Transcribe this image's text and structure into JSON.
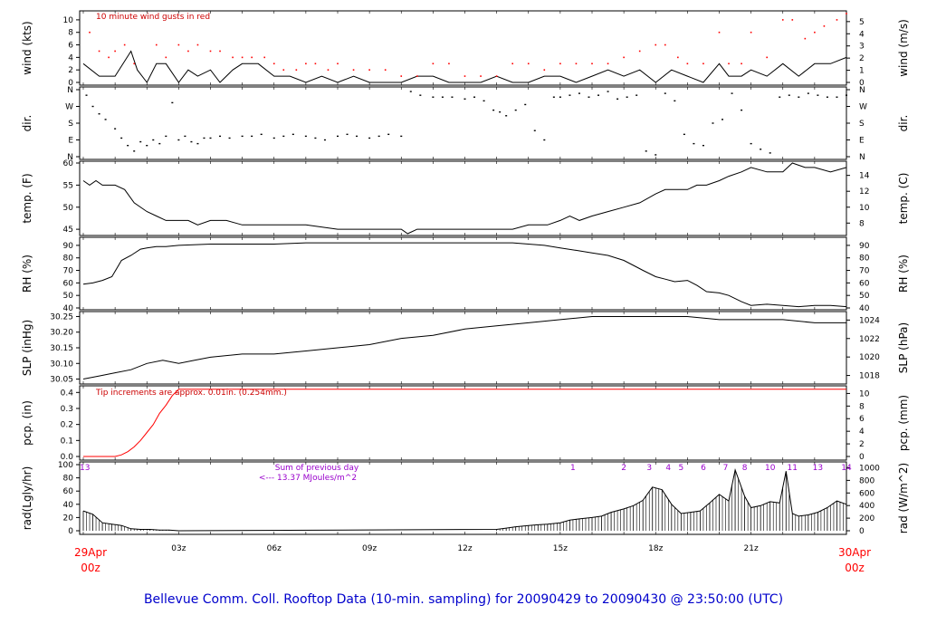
{
  "title": "Bellevue Comm. Coll. Rooftop Data (10-min. sampling) for 20090429  to  20090430 @ 23:50:00  (UTC)",
  "x_ticks": [
    "03z",
    "06z",
    "09z",
    "12z",
    "15z",
    "18z",
    "21z"
  ],
  "start_label": {
    "date": "29Apr",
    "time": "00z"
  },
  "end_label": {
    "date": "30Apr",
    "time": "00z"
  },
  "chart_data": [
    {
      "type": "line",
      "id": "wind",
      "ylabel_left": "wind (kts)",
      "ylabel_right": "wind (m/s)",
      "ylim": [
        0,
        11
      ],
      "left_ticks": [
        0,
        2,
        4,
        6,
        8,
        10
      ],
      "right_ticks": [
        0,
        1,
        2,
        3,
        4,
        5
      ],
      "annotation": "10  minute wind gusts in red",
      "x_hours": [
        0,
        0.5,
        1,
        1.5,
        1.7,
        2,
        2.3,
        2.6,
        3,
        3.3,
        3.6,
        4,
        4.3,
        4.7,
        5,
        5.5,
        6,
        6.5,
        7,
        7.5,
        8,
        8.5,
        9,
        9.5,
        10,
        10.5,
        11,
        11.5,
        12,
        12.5,
        13,
        13.5,
        14,
        14.5,
        15,
        15.5,
        16,
        16.5,
        17,
        17.5,
        18,
        18.5,
        19,
        19.5,
        20,
        20.3,
        20.7,
        21,
        21.5,
        22,
        22.5,
        23,
        23.5,
        24
      ],
      "speed": [
        3,
        1,
        1,
        5,
        2,
        0,
        3,
        3,
        0,
        2,
        1,
        2,
        0,
        2,
        3,
        3,
        1,
        1,
        0,
        1,
        0,
        1,
        0,
        0,
        0,
        1,
        1,
        0,
        0,
        0,
        1,
        0,
        0,
        1,
        1,
        0,
        1,
        2,
        1,
        2,
        0,
        2,
        1,
        0,
        3,
        1,
        1,
        2,
        1,
        3,
        1,
        3,
        3,
        4
      ],
      "gust_hours": [
        0.2,
        0.5,
        0.8,
        1,
        1.3,
        1.6,
        2.3,
        2.6,
        3,
        3.3,
        3.6,
        4,
        4.3,
        4.7,
        5,
        5.3,
        5.7,
        6,
        6.3,
        6.7,
        7,
        7.3,
        7.7,
        8,
        8.5,
        9,
        9.5,
        10,
        10.5,
        11,
        11.5,
        12,
        12.5,
        13,
        13.5,
        14,
        14.5,
        15,
        15.5,
        16,
        16.5,
        17,
        17.5,
        18,
        18.3,
        18.7,
        19,
        19.5,
        20,
        20.3,
        20.7,
        21,
        21.5,
        22,
        22.3,
        22.7,
        23,
        23.3,
        23.7,
        24
      ],
      "gust": [
        8,
        5,
        4,
        5,
        6,
        3,
        6,
        4,
        6,
        5,
        6,
        5,
        5,
        4,
        4,
        4,
        4,
        3,
        2,
        2,
        3,
        3,
        2,
        3,
        2,
        2,
        2,
        1,
        1,
        3,
        3,
        1,
        1,
        1,
        3,
        3,
        2,
        3,
        3,
        3,
        3,
        4,
        5,
        6,
        6,
        4,
        3,
        3,
        8,
        3,
        3,
        8,
        4,
        10,
        10,
        7,
        8,
        9,
        10,
        11
      ]
    },
    {
      "type": "scatter",
      "id": "dir",
      "ylabel_left": "dir.",
      "ylabel_right": "dir.",
      "categories": [
        "N",
        "E",
        "S",
        "W",
        "N"
      ],
      "x_hours": [
        0.1,
        0.3,
        0.5,
        0.7,
        1,
        1.2,
        1.4,
        1.6,
        1.8,
        2,
        2.2,
        2.4,
        2.6,
        2.8,
        3,
        3.2,
        3.4,
        3.6,
        3.8,
        4,
        4.3,
        4.6,
        5,
        5.3,
        5.6,
        6,
        6.3,
        6.6,
        7,
        7.3,
        7.6,
        8,
        8.3,
        8.6,
        9,
        9.3,
        9.6,
        10,
        10.3,
        10.6,
        11,
        11.3,
        11.6,
        12,
        12.3,
        12.6,
        12.9,
        13.1,
        13.3,
        13.6,
        13.9,
        14.2,
        14.5,
        14.8,
        15,
        15.3,
        15.6,
        15.9,
        16.2,
        16.5,
        16.8,
        17.1,
        17.4,
        17.7,
        18,
        18.3,
        18.6,
        18.9,
        19.2,
        19.5,
        19.8,
        20.1,
        20.4,
        20.7,
        21,
        21.3,
        21.6,
        21.9,
        22.2,
        22.5,
        22.8,
        23.1,
        23.4,
        23.7,
        24
      ],
      "deg": [
        330,
        270,
        230,
        200,
        150,
        100,
        60,
        30,
        80,
        60,
        90,
        70,
        110,
        290,
        90,
        110,
        80,
        70,
        100,
        100,
        110,
        100,
        110,
        110,
        120,
        100,
        110,
        120,
        110,
        100,
        90,
        110,
        120,
        110,
        100,
        110,
        120,
        110,
        350,
        330,
        320,
        320,
        320,
        310,
        320,
        300,
        250,
        240,
        220,
        250,
        280,
        140,
        90,
        320,
        320,
        330,
        340,
        320,
        330,
        350,
        310,
        320,
        330,
        30,
        10,
        340,
        300,
        120,
        70,
        60,
        180,
        200,
        340,
        250,
        70,
        40,
        20,
        320,
        330,
        320,
        340,
        330,
        320,
        320,
        330
      ]
    },
    {
      "type": "line",
      "id": "temp",
      "ylabel_left": "temp. (F)",
      "ylabel_right": "temp. (C)",
      "ylim": [
        44,
        60
      ],
      "left_ticks": [
        45,
        50,
        55,
        60
      ],
      "right_ticks": [
        8,
        10,
        12,
        14
      ],
      "x_hours": [
        0,
        0.2,
        0.4,
        0.6,
        1,
        1.3,
        1.6,
        2,
        2.3,
        2.6,
        3,
        3.3,
        3.6,
        4,
        4.5,
        5,
        6,
        7,
        8,
        9,
        10,
        10.2,
        10.5,
        11,
        12,
        13,
        13.5,
        14,
        14.3,
        14.6,
        15,
        15.3,
        15.6,
        16,
        16.5,
        17,
        17.5,
        18,
        18.3,
        18.7,
        19,
        19.3,
        19.6,
        20,
        20.3,
        20.7,
        21,
        21.5,
        22,
        22.3,
        22.7,
        23,
        23.5,
        24
      ],
      "values": [
        56,
        55,
        56,
        55,
        55,
        54,
        51,
        49,
        48,
        47,
        47,
        47,
        46,
        47,
        47,
        46,
        46,
        46,
        45,
        45,
        45,
        44,
        45,
        45,
        45,
        45,
        45,
        46,
        46,
        46,
        47,
        48,
        47,
        48,
        49,
        50,
        51,
        53,
        54,
        54,
        54,
        55,
        55,
        56,
        57,
        58,
        59,
        58,
        58,
        60,
        59,
        59,
        58,
        59
      ]
    },
    {
      "type": "line",
      "id": "rh",
      "ylabel_left": "RH (%)",
      "ylabel_right": "RH (%)",
      "ylim": [
        40,
        95
      ],
      "left_ticks": [
        40,
        50,
        60,
        70,
        80,
        90
      ],
      "right_ticks": [
        40,
        50,
        60,
        70,
        80,
        90
      ],
      "x_hours": [
        0,
        0.3,
        0.6,
        0.9,
        1.2,
        1.5,
        1.8,
        2,
        2.3,
        2.6,
        3,
        4,
        5,
        6,
        7,
        8,
        9,
        10,
        11,
        12,
        13,
        13.5,
        14,
        14.5,
        15,
        15.5,
        16,
        16.5,
        17,
        17.3,
        17.6,
        18,
        18.3,
        18.6,
        19,
        19.3,
        19.6,
        20,
        20.3,
        20.7,
        21,
        21.5,
        22,
        22.5,
        23,
        23.5,
        24
      ],
      "values": [
        59,
        60,
        62,
        65,
        78,
        82,
        87,
        88,
        89,
        89,
        90,
        91,
        91,
        91,
        92,
        92,
        92,
        92,
        92,
        92,
        92,
        92,
        91,
        90,
        88,
        86,
        84,
        82,
        78,
        74,
        70,
        65,
        63,
        61,
        62,
        58,
        53,
        52,
        50,
        45,
        42,
        43,
        42,
        41,
        42,
        42,
        41
      ]
    },
    {
      "type": "line",
      "id": "slp",
      "ylabel_left": "SLP (inHg)",
      "ylabel_right": "SLP (hPa)",
      "ylim": [
        30.04,
        30.26
      ],
      "left_ticks": [
        "30.05",
        "30.10",
        "30.15",
        "30.20",
        "30.25"
      ],
      "right_ticks": [
        1018,
        1020,
        1022,
        1024
      ],
      "x_hours": [
        0,
        0.5,
        1,
        1.5,
        2,
        2.5,
        3,
        3.5,
        4,
        5,
        6,
        7,
        8,
        9,
        10,
        11,
        12,
        13,
        14,
        15,
        16,
        17,
        18,
        19,
        20,
        21,
        22,
        23,
        24
      ],
      "values": [
        30.05,
        30.06,
        30.07,
        30.08,
        30.1,
        30.11,
        30.1,
        30.11,
        30.12,
        30.13,
        30.13,
        30.14,
        30.15,
        30.16,
        30.18,
        30.19,
        30.21,
        30.22,
        30.23,
        30.24,
        30.25,
        30.25,
        30.25,
        30.25,
        30.24,
        30.24,
        30.24,
        30.23,
        30.23
      ]
    },
    {
      "type": "line",
      "id": "pcp",
      "ylabel_left": "pcp. (in)",
      "ylabel_right": "pcp. (mm)",
      "ylim": [
        0,
        0.43
      ],
      "left_ticks": [
        "0.0",
        "0.1",
        "0.2",
        "0.3",
        "0.4"
      ],
      "right_ticks": [
        0,
        2,
        4,
        6,
        8,
        10
      ],
      "annotation": "Tip increments are approx. 0.01in. (0.254mm.)",
      "x_hours": [
        0,
        0.5,
        1,
        1.2,
        1.4,
        1.6,
        1.8,
        2,
        2.2,
        2.4,
        2.6,
        2.8,
        3,
        24
      ],
      "values": [
        0,
        0,
        0,
        0.01,
        0.03,
        0.06,
        0.1,
        0.15,
        0.2,
        0.27,
        0.32,
        0.38,
        0.42,
        0.42
      ]
    },
    {
      "type": "bar",
      "id": "rad",
      "ylabel_left": "rad(Lgly/hr)",
      "ylabel_right": "rad (W/m^2)",
      "ylim": [
        0,
        100
      ],
      "left_ticks": [
        0,
        20,
        40,
        60,
        80,
        100
      ],
      "right_ticks": [
        0,
        200,
        400,
        600,
        800,
        1000
      ],
      "annotation_line1": "Sum of previous day",
      "annotation_line2": "<--- 13.37 MJoules/m^2",
      "hour_labels": [
        "13",
        "1",
        "2",
        "3",
        "4",
        "5",
        "6",
        "7",
        "8",
        "10",
        "11",
        "13",
        "14"
      ],
      "hour_label_x": [
        0.05,
        15.4,
        17.0,
        17.8,
        18.4,
        18.8,
        19.5,
        20.2,
        20.8,
        21.6,
        22.3,
        23.1,
        24.0
      ],
      "x_hours": [
        0,
        0.3,
        0.6,
        0.9,
        1.2,
        1.5,
        1.8,
        2.1,
        2.4,
        2.7,
        3,
        13,
        13.3,
        13.6,
        14,
        14.3,
        14.6,
        15,
        15.3,
        15.6,
        16,
        16.3,
        16.6,
        17,
        17.3,
        17.6,
        17.9,
        18.2,
        18.5,
        18.8,
        19.1,
        19.4,
        19.7,
        20,
        20.3,
        20.5,
        20.8,
        21,
        21.3,
        21.6,
        21.9,
        22.1,
        22.3,
        22.5,
        22.8,
        23.1,
        23.4,
        23.7,
        24
      ],
      "values": [
        30,
        25,
        12,
        10,
        8,
        3,
        2,
        2,
        1,
        1,
        0,
        2,
        4,
        6,
        8,
        9,
        10,
        12,
        16,
        18,
        20,
        22,
        28,
        33,
        38,
        46,
        66,
        62,
        40,
        26,
        28,
        30,
        42,
        55,
        45,
        92,
        52,
        35,
        38,
        44,
        42,
        90,
        26,
        22,
        24,
        28,
        35,
        45,
        40
      ]
    }
  ]
}
